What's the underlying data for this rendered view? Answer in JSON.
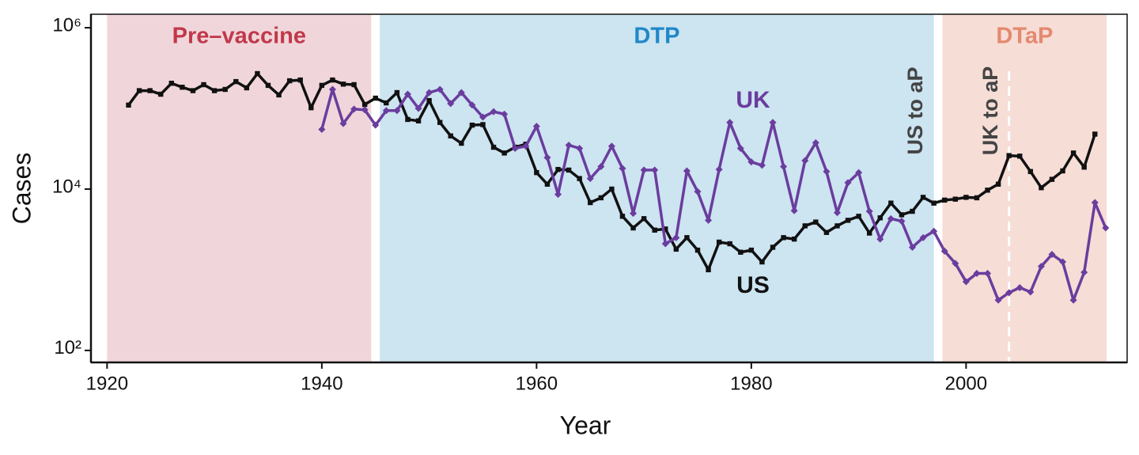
{
  "chart_data": {
    "type": "line",
    "xlabel": "Year",
    "ylabel": "Cases",
    "log_y": true,
    "xlim": [
      1918.5,
      2015
    ],
    "ylim": [
      71,
      1470000
    ],
    "xticks": [
      1920,
      1940,
      1960,
      1980,
      2000
    ],
    "yticks": [
      {
        "value": 100,
        "label": "10²"
      },
      {
        "value": 10000,
        "label": "10⁴"
      },
      {
        "value": 1000000,
        "label": "10⁶"
      }
    ],
    "regions": [
      {
        "label": "Pre–vaccine",
        "start": 1920,
        "end": 1944.6,
        "color": "#f0d6da",
        "label_color": "#c0394b"
      },
      {
        "label": "DTP",
        "start": 1945.4,
        "end": 1997,
        "color": "#cde4f1",
        "label_color": "#1f88c8"
      },
      {
        "label": "DTaP",
        "start": 1997.8,
        "end": 2013.1,
        "color": "#f6ddd6",
        "label_color": "#e4896f"
      }
    ],
    "annotations": [
      {
        "text": "US to aP",
        "x": 1997
      },
      {
        "text": "UK to aP",
        "x": 2004
      }
    ],
    "series": [
      {
        "name": "US",
        "color": "#111111",
        "marker": "square",
        "x": [
          1922,
          1923,
          1924,
          1925,
          1926,
          1927,
          1928,
          1929,
          1930,
          1931,
          1932,
          1933,
          1934,
          1935,
          1936,
          1937,
          1938,
          1939,
          1940,
          1941,
          1942,
          1943,
          1944,
          1945,
          1946,
          1947,
          1948,
          1949,
          1950,
          1951,
          1952,
          1953,
          1954,
          1955,
          1956,
          1957,
          1958,
          1959,
          1960,
          1961,
          1962,
          1963,
          1964,
          1965,
          1966,
          1967,
          1968,
          1969,
          1970,
          1971,
          1972,
          1973,
          1974,
          1975,
          1976,
          1977,
          1978,
          1979,
          1980,
          1981,
          1982,
          1983,
          1984,
          1985,
          1986,
          1987,
          1988,
          1989,
          1990,
          1991,
          1992,
          1993,
          1994,
          1995,
          1996,
          1997,
          1998,
          1999,
          2000,
          2001,
          2002,
          2003,
          2004,
          2005,
          2006,
          2007,
          2008,
          2009,
          2010,
          2011,
          2012
        ],
        "values": [
          110000,
          166000,
          166000,
          150000,
          205000,
          183000,
          166000,
          197000,
          166000,
          172000,
          215000,
          180000,
          270000,
          193000,
          147000,
          220000,
          225000,
          102000,
          193000,
          225000,
          200000,
          197000,
          112000,
          134000,
          117000,
          157000,
          73000,
          70000,
          125000,
          67000,
          45600,
          37000,
          62000,
          63000,
          33000,
          28000,
          33000,
          36000,
          16000,
          11500,
          17500,
          17200,
          13500,
          6800,
          7800,
          10000,
          4600,
          3300,
          4300,
          3100,
          3200,
          1800,
          2500,
          1750,
          1000,
          2200,
          2100,
          1650,
          1750,
          1250,
          1900,
          2500,
          2400,
          3500,
          3900,
          2900,
          3500,
          4100,
          4600,
          2850,
          4400,
          6700,
          4800,
          5300,
          7900,
          6700,
          7300,
          7500,
          7900,
          7800,
          9700,
          11500,
          26000,
          25600,
          16500,
          10400,
          13200,
          16800,
          28000,
          18700,
          48000
        ]
      },
      {
        "name": "UK",
        "color": "#6a3d9e",
        "marker": "diamond",
        "x": [
          1940,
          1941,
          1942,
          1943,
          1944,
          1945,
          1946,
          1947,
          1948,
          1949,
          1950,
          1951,
          1952,
          1953,
          1954,
          1955,
          1956,
          1957,
          1958,
          1959,
          1960,
          1961,
          1962,
          1963,
          1964,
          1965,
          1966,
          1967,
          1968,
          1969,
          1970,
          1971,
          1972,
          1973,
          1974,
          1975,
          1976,
          1977,
          1978,
          1979,
          1980,
          1981,
          1982,
          1983,
          1984,
          1985,
          1986,
          1987,
          1988,
          1989,
          1990,
          1991,
          1992,
          1993,
          1994,
          1995,
          1996,
          1997,
          1998,
          1999,
          2000,
          2001,
          2002,
          2003,
          2004,
          2005,
          2006,
          2007,
          2008,
          2009,
          2010,
          2011,
          2012,
          2013
        ],
        "values": [
          55000,
          172000,
          65000,
          98000,
          96000,
          62000,
          94000,
          94000,
          150000,
          100000,
          157000,
          172000,
          115000,
          157000,
          110000,
          78000,
          91000,
          85000,
          32000,
          34000,
          60000,
          24600,
          8600,
          35000,
          32000,
          13500,
          19000,
          34000,
          18000,
          5000,
          17200,
          17200,
          2100,
          2500,
          16800,
          9300,
          4100,
          17500,
          67000,
          32000,
          21700,
          19700,
          67000,
          19000,
          5400,
          22500,
          37500,
          16500,
          5100,
          12000,
          16000,
          5300,
          2400,
          4300,
          4000,
          1900,
          2500,
          3000,
          1700,
          1200,
          710,
          900,
          900,
          420,
          520,
          600,
          530,
          1100,
          1550,
          1250,
          420,
          930,
          6800,
          3300
        ]
      }
    ]
  }
}
